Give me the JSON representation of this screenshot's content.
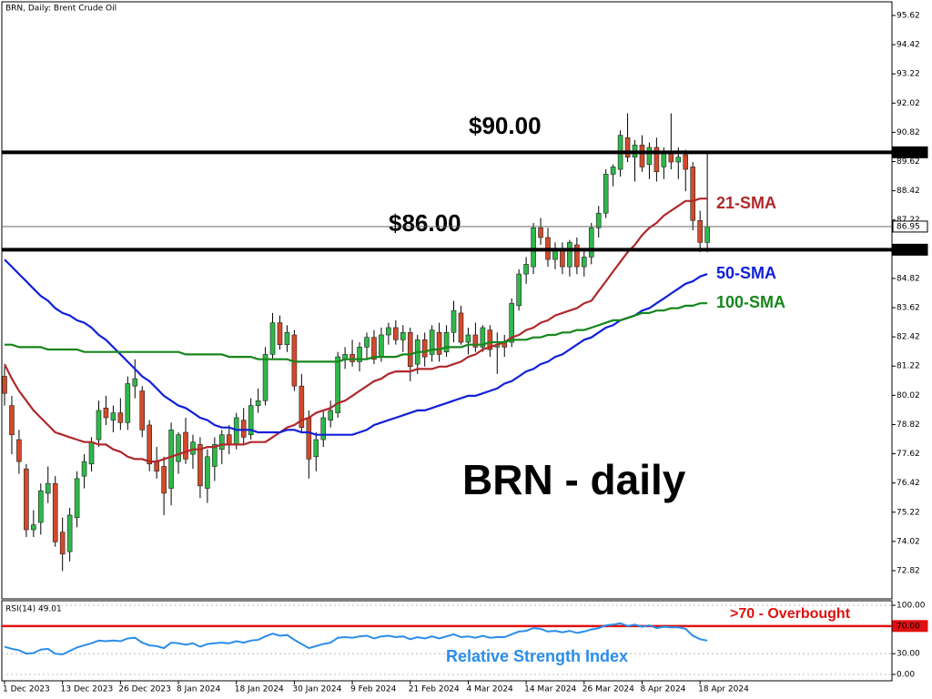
{
  "chart_data": [
    {
      "type": "candlestick",
      "title": "BRN, Daily:  Brent Crude Oil",
      "annotation": "BRN - daily",
      "categories": [
        "1 Dec 2023",
        null,
        null,
        null,
        null,
        null,
        null,
        null,
        "13 Dec 2023",
        null,
        null,
        null,
        null,
        null,
        null,
        null,
        "26 Dec 2023",
        null,
        null,
        null,
        null,
        null,
        null,
        null,
        "8 Jan 2024",
        null,
        null,
        null,
        null,
        null,
        null,
        null,
        "18 Jan 2024",
        null,
        null,
        null,
        null,
        null,
        null,
        null,
        "30 Jan 2024",
        null,
        null,
        null,
        null,
        null,
        null,
        null,
        "9 Feb 2024",
        null,
        null,
        null,
        null,
        null,
        null,
        null,
        "21 Feb 2024",
        null,
        null,
        null,
        null,
        null,
        null,
        null,
        "4 Mar 2024",
        null,
        null,
        null,
        null,
        null,
        null,
        null,
        "14 Mar 2024",
        null,
        null,
        null,
        null,
        null,
        null,
        null,
        "26 Mar 2024",
        null,
        null,
        null,
        null,
        null,
        null,
        null,
        "8 Apr 2024",
        null,
        null,
        null,
        null,
        null,
        null,
        null,
        "18 Apr 2024",
        null
      ],
      "open": [
        80.8,
        79.6,
        78.2,
        77.0,
        74.5,
        74.8,
        76.0,
        76.4,
        74.4,
        73.6,
        75.0,
        76.7,
        77.2,
        78.2,
        79.5,
        79.0,
        79.3,
        78.9,
        80.4,
        80.2,
        78.8,
        77.3,
        77.1,
        76.2,
        77.3,
        78.5,
        77.6,
        78.0,
        76.2,
        77.1,
        77.8,
        78.4,
        78.0,
        79.0,
        78.4,
        79.6,
        79.8,
        81.7,
        83.0,
        82.1,
        82.5,
        80.4,
        79.1,
        77.5,
        78.2,
        79.0,
        79.3,
        81.5,
        81.7,
        81.4,
        82.0,
        82.4,
        81.6,
        82.5,
        82.8,
        82.3,
        82.6,
        81.3,
        82.3,
        81.7,
        82.6,
        81.8,
        82.6,
        83.4,
        82.2,
        82.5,
        82.0,
        82.7,
        82.0,
        82.2,
        82.2,
        83.7,
        85.0,
        85.3,
        86.9,
        86.5,
        85.6,
        86.0,
        85.3,
        86.2,
        85.3,
        85.7,
        86.9,
        87.5,
        89.1,
        89.3,
        90.6,
        89.8,
        90.3,
        89.5,
        90.2,
        89.4,
        90.0,
        89.6,
        89.9,
        89.4,
        87.2,
        86.3
      ],
      "high": [
        81.2,
        80.0,
        78.6,
        77.2,
        75.3,
        76.4,
        77.1,
        76.7,
        75.0,
        75.4,
        76.9,
        77.6,
        78.3,
        79.8,
        80.0,
        79.6,
        79.9,
        80.8,
        81.5,
        80.4,
        79.0,
        77.9,
        77.5,
        78.9,
        78.5,
        79.1,
        78.4,
        78.3,
        77.8,
        78.3,
        78.6,
        78.8,
        79.3,
        79.5,
        79.9,
        80.3,
        82.0,
        83.4,
        83.3,
        82.9,
        82.7,
        80.9,
        79.4,
        78.5,
        79.4,
        79.8,
        81.8,
        82.0,
        82.3,
        82.2,
        82.6,
        82.7,
        82.8,
        83.0,
        83.1,
        82.9,
        82.8,
        82.5,
        82.6,
        82.9,
        83.0,
        82.9,
        83.9,
        83.7,
        82.8,
        83.0,
        82.9,
        82.9,
        82.6,
        82.5,
        84.0,
        85.2,
        85.7,
        87.1,
        87.3,
        86.9,
        86.3,
        86.3,
        86.4,
        86.5,
        86.0,
        87.1,
        87.8,
        89.3,
        89.5,
        90.9,
        91.6,
        90.5,
        90.7,
        90.4,
        90.6,
        90.2,
        91.6,
        90.2,
        90.1,
        89.6,
        87.6,
        90.0
      ],
      "low": [
        79.6,
        77.6,
        76.8,
        74.2,
        74.2,
        74.3,
        75.6,
        73.8,
        72.8,
        73.2,
        74.6,
        76.2,
        76.9,
        77.9,
        78.8,
        78.5,
        78.6,
        78.6,
        79.9,
        78.3,
        76.9,
        76.6,
        75.1,
        75.5,
        76.8,
        77.2,
        77.0,
        75.8,
        75.6,
        76.5,
        77.2,
        77.6,
        77.8,
        78.0,
        78.2,
        79.3,
        79.6,
        81.5,
        81.9,
        81.8,
        80.2,
        78.5,
        76.6,
        76.9,
        77.9,
        78.7,
        79.1,
        81.1,
        81.2,
        81.0,
        81.5,
        81.3,
        81.4,
        82.1,
        82.1,
        81.8,
        80.6,
        80.9,
        81.2,
        81.4,
        81.4,
        81.6,
        82.2,
        82.1,
        81.7,
        81.8,
        81.8,
        81.6,
        80.9,
        81.6,
        82.0,
        83.5,
        84.6,
        85.0,
        86.2,
        85.3,
        85.2,
        85.0,
        84.9,
        85.0,
        84.9,
        85.4,
        86.5,
        87.3,
        88.6,
        89.0,
        89.6,
        88.8,
        89.2,
        88.9,
        88.8,
        88.9,
        89.3,
        88.9,
        88.4,
        86.8,
        85.9,
        85.9
      ],
      "close": [
        80.1,
        78.4,
        77.3,
        74.5,
        74.7,
        76.1,
        76.4,
        74.0,
        73.5,
        75.1,
        76.6,
        77.3,
        78.1,
        79.4,
        79.1,
        79.3,
        78.9,
        80.5,
        80.7,
        78.6,
        77.2,
        76.9,
        76.0,
        78.6,
        78.4,
        77.4,
        78.1,
        76.3,
        77.5,
        78.0,
        78.4,
        78.0,
        79.1,
        78.3,
        79.6,
        79.8,
        81.7,
        83.0,
        82.1,
        82.6,
        80.4,
        78.7,
        77.4,
        78.2,
        79.1,
        79.4,
        81.6,
        81.7,
        81.4,
        82.0,
        82.4,
        81.5,
        82.5,
        82.8,
        82.3,
        82.6,
        81.2,
        82.3,
        81.6,
        82.7,
        81.7,
        82.6,
        83.5,
        82.2,
        82.5,
        82.0,
        82.8,
        81.9,
        82.1,
        82.0,
        83.8,
        85.0,
        85.4,
        86.9,
        86.5,
        85.6,
        86.0,
        85.3,
        86.3,
        85.3,
        85.7,
        86.9,
        87.5,
        89.1,
        89.4,
        90.7,
        89.8,
        90.3,
        89.4,
        90.2,
        89.2,
        90.0,
        89.6,
        89.8,
        89.3,
        87.2,
        86.3,
        86.95
      ],
      "up_color": "#2fb84a",
      "down_color": "#d24a2a",
      "series": [
        {
          "name": "21-SMA",
          "color": "#b0282a",
          "values": [
            81.3,
            80.7,
            80.2,
            79.8,
            79.4,
            79.1,
            78.8,
            78.5,
            78.4,
            78.3,
            78.2,
            78.1,
            78.1,
            78.0,
            78.0,
            77.8,
            77.7,
            77.5,
            77.4,
            77.4,
            77.3,
            77.3,
            77.4,
            77.5,
            77.6,
            77.7,
            77.8,
            77.8,
            77.9,
            77.9,
            78.0,
            78.0,
            78.0,
            78.0,
            78.1,
            78.1,
            78.1,
            78.3,
            78.5,
            78.7,
            78.8,
            79.0,
            79.1,
            79.3,
            79.4,
            79.5,
            79.7,
            79.8,
            80.0,
            80.2,
            80.4,
            80.6,
            80.7,
            80.9,
            81.0,
            81.0,
            81.0,
            81.1,
            81.1,
            81.1,
            81.2,
            81.2,
            81.3,
            81.4,
            81.6,
            81.7,
            81.9,
            82.0,
            82.1,
            82.2,
            82.4,
            82.5,
            82.7,
            82.8,
            83.0,
            83.1,
            83.3,
            83.4,
            83.5,
            83.6,
            83.8,
            83.9,
            84.3,
            84.7,
            85.1,
            85.5,
            85.9,
            86.2,
            86.6,
            86.9,
            87.1,
            87.4,
            87.6,
            87.8,
            88.0,
            88.0,
            88.1,
            88.1
          ]
        },
        {
          "name": "50-SMA",
          "color": "#1020d8",
          "values": [
            85.6,
            85.3,
            85.0,
            84.7,
            84.4,
            84.1,
            83.9,
            83.6,
            83.4,
            83.3,
            83.1,
            83.0,
            82.8,
            82.5,
            82.3,
            82.0,
            81.7,
            81.4,
            81.1,
            80.8,
            80.6,
            80.3,
            80.0,
            79.8,
            79.6,
            79.5,
            79.3,
            79.1,
            79.0,
            78.8,
            78.7,
            78.7,
            78.6,
            78.6,
            78.6,
            78.5,
            78.5,
            78.5,
            78.5,
            78.6,
            78.6,
            78.5,
            78.5,
            78.4,
            78.4,
            78.4,
            78.4,
            78.4,
            78.4,
            78.5,
            78.6,
            78.8,
            78.9,
            79.0,
            79.1,
            79.2,
            79.3,
            79.4,
            79.4,
            79.5,
            79.6,
            79.7,
            79.8,
            79.9,
            80.0,
            80.0,
            80.1,
            80.2,
            80.3,
            80.5,
            80.6,
            80.8,
            81.0,
            81.1,
            81.3,
            81.4,
            81.6,
            81.7,
            81.9,
            82.1,
            82.3,
            82.4,
            82.6,
            82.8,
            82.9,
            83.1,
            83.2,
            83.3,
            83.5,
            83.6,
            83.8,
            84.0,
            84.2,
            84.4,
            84.6,
            84.7,
            84.9,
            85.0
          ]
        },
        {
          "name": "100-SMA",
          "color": "#16861c",
          "values": [
            82.1,
            82.1,
            82.0,
            82.0,
            82.0,
            82.0,
            81.9,
            81.9,
            81.9,
            81.9,
            81.9,
            81.8,
            81.8,
            81.8,
            81.8,
            81.8,
            81.8,
            81.8,
            81.8,
            81.8,
            81.8,
            81.8,
            81.8,
            81.8,
            81.8,
            81.7,
            81.7,
            81.7,
            81.7,
            81.7,
            81.7,
            81.6,
            81.6,
            81.6,
            81.6,
            81.5,
            81.5,
            81.5,
            81.5,
            81.5,
            81.4,
            81.4,
            81.4,
            81.4,
            81.4,
            81.4,
            81.4,
            81.5,
            81.5,
            81.5,
            81.5,
            81.6,
            81.6,
            81.6,
            81.6,
            81.7,
            81.7,
            81.8,
            81.8,
            81.9,
            81.9,
            82.0,
            82.0,
            82.0,
            82.1,
            82.1,
            82.1,
            82.2,
            82.2,
            82.2,
            82.3,
            82.3,
            82.3,
            82.4,
            82.4,
            82.5,
            82.5,
            82.6,
            82.6,
            82.7,
            82.7,
            82.8,
            82.9,
            83.0,
            83.1,
            83.1,
            83.2,
            83.3,
            83.4,
            83.4,
            83.5,
            83.5,
            83.6,
            83.6,
            83.7,
            83.7,
            83.8,
            83.8
          ]
        }
      ],
      "ylim": [
        71.66,
        96.18
      ],
      "yticks": [
        95.62,
        94.42,
        93.22,
        92.02,
        90.82,
        89.62,
        88.42,
        87.22,
        84.82,
        83.62,
        82.42,
        81.22,
        80.02,
        78.82,
        77.62,
        76.42,
        75.22,
        74.02,
        72.82
      ],
      "levels": [
        {
          "value": 90,
          "label": "90.00",
          "annotation": "$90.00"
        },
        {
          "value": 86,
          "label": "86.00",
          "annotation": "$86.00"
        }
      ],
      "current_price": {
        "value": 86.95,
        "label": "86.95"
      }
    },
    {
      "type": "line",
      "title": "RSI(14) 49.01",
      "series": [
        {
          "name": "Relative Strength Index",
          "color": "#2b8de8",
          "values": [
            40,
            37,
            35,
            30,
            31,
            36,
            37,
            30,
            29,
            34,
            39,
            42,
            45,
            49,
            48,
            49,
            48,
            52,
            53,
            46,
            42,
            41,
            38,
            46,
            45,
            43,
            45,
            40,
            44,
            45,
            46,
            45,
            48,
            46,
            49,
            50,
            55,
            59,
            56,
            57,
            50,
            44,
            38,
            41,
            44,
            46,
            53,
            54,
            53,
            55,
            56,
            52,
            55,
            56,
            54,
            55,
            51,
            54,
            52,
            55,
            52,
            55,
            58,
            54,
            55,
            53,
            56,
            53,
            54,
            54,
            58,
            62,
            63,
            67,
            66,
            62,
            63,
            61,
            63,
            60,
            62,
            65,
            67,
            71,
            72,
            74,
            70,
            72,
            69,
            71,
            67,
            69,
            68,
            68,
            66,
            56,
            51,
            49.01
          ]
        }
      ],
      "ylim": [
        -9.2,
        106.6
      ],
      "yticks": [
        {
          "value": 100,
          "label": "100.00"
        },
        {
          "value": 30,
          "label": "30.00"
        },
        {
          "value": 0,
          "label": "0.00"
        }
      ],
      "grid": true,
      "level": {
        "value": 70,
        "label": "70.00",
        "annotation": ">70 - Overbought",
        "color": "#e01010"
      }
    }
  ]
}
